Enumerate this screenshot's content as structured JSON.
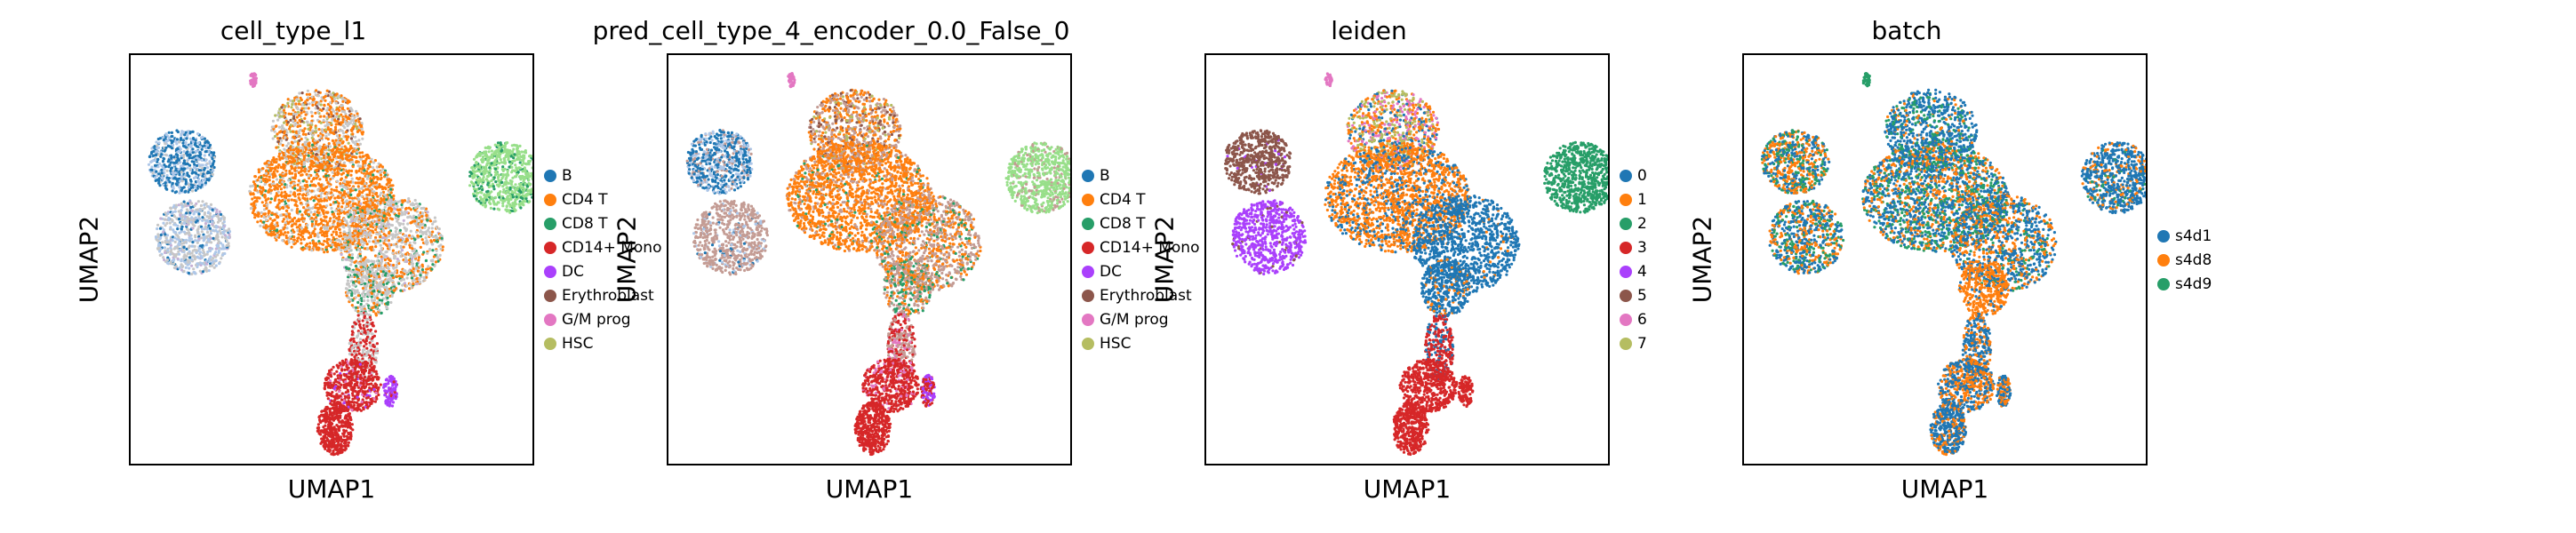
{
  "chart_data": [
    {
      "type": "scatter",
      "title": "cell_type_l1",
      "xlabel": "UMAP1",
      "ylabel": "UMAP2",
      "legend_placement": "right",
      "grid": false,
      "legend": [
        {
          "label": "B",
          "color": "#1f77b4"
        },
        {
          "label": "CD4 T",
          "color": "#ff7f0e"
        },
        {
          "label": "CD8 T",
          "color": "#279e68"
        },
        {
          "label": "CD14+ Mono",
          "color": "#d62728"
        },
        {
          "label": "DC",
          "color": "#aa40fc"
        },
        {
          "label": "Erythroblast",
          "color": "#8c564b"
        },
        {
          "label": "G/M prog",
          "color": "#e377c2"
        },
        {
          "label": "HSC",
          "color": "#b5bd61"
        }
      ],
      "extra_point_colors": [
        "#aec7e8",
        "#c7c7c7",
        "#98df8a",
        "#c5b0d5"
      ]
    },
    {
      "type": "scatter",
      "title": "pred_cell_type_4_encoder_0.0_False_0",
      "xlabel": "UMAP1",
      "ylabel": "UMAP2",
      "legend_placement": "right",
      "grid": false,
      "legend": [
        {
          "label": "B",
          "color": "#1f77b4"
        },
        {
          "label": "CD4 T",
          "color": "#ff7f0e"
        },
        {
          "label": "CD8 T",
          "color": "#279e68"
        },
        {
          "label": "CD14+ Mono",
          "color": "#d62728"
        },
        {
          "label": "DC",
          "color": "#aa40fc"
        },
        {
          "label": "Erythroblast",
          "color": "#8c564b"
        },
        {
          "label": "G/M prog",
          "color": "#e377c2"
        },
        {
          "label": "HSC",
          "color": "#b5bd61"
        }
      ],
      "extra_point_colors": [
        "#aec7e8",
        "#c49c94",
        "#98df8a"
      ]
    },
    {
      "type": "scatter",
      "title": "leiden",
      "xlabel": "UMAP1",
      "ylabel": "UMAP2",
      "legend_placement": "right",
      "grid": false,
      "legend": [
        {
          "label": "0",
          "color": "#1f77b4"
        },
        {
          "label": "1",
          "color": "#ff7f0e"
        },
        {
          "label": "2",
          "color": "#279e68"
        },
        {
          "label": "3",
          "color": "#d62728"
        },
        {
          "label": "4",
          "color": "#aa40fc"
        },
        {
          "label": "5",
          "color": "#8c564b"
        },
        {
          "label": "6",
          "color": "#e377c2"
        },
        {
          "label": "7",
          "color": "#b5bd61"
        }
      ],
      "extra_point_colors": []
    },
    {
      "type": "scatter",
      "title": "batch",
      "xlabel": "UMAP1",
      "ylabel": "UMAP2",
      "legend_placement": "right",
      "grid": false,
      "legend": [
        {
          "label": "s4d1",
          "color": "#1f77b4"
        },
        {
          "label": "s4d8",
          "color": "#ff7f0e"
        },
        {
          "label": "s4d9",
          "color": "#279e68"
        }
      ],
      "extra_point_colors": []
    }
  ]
}
